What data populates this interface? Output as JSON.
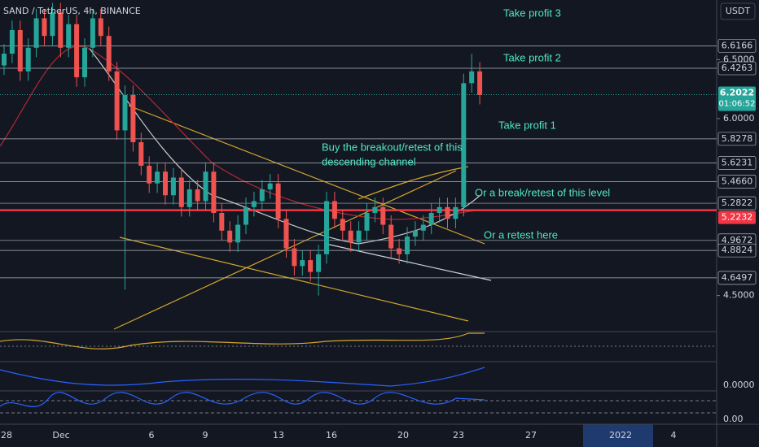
{
  "header": {
    "title": "SAND / TetherUS, 4h, BINANCE",
    "currency": "USDT"
  },
  "annotations": [
    "Take profit 3",
    "Take profit 2",
    "Take profit 1",
    "Buy the breakout/retest of this",
    "descending channel",
    "Or a break/retest of this level",
    "Or a retest here"
  ],
  "chart_data": {
    "type": "candlestick",
    "ylim": [
      4.215,
      7.005
    ],
    "yticks": [
      {
        "value": 6.5,
        "label": "6.5000"
      },
      {
        "value": 6.0,
        "label": "6.0000"
      },
      {
        "value": 4.5,
        "label": "4.5000"
      }
    ],
    "levels": [
      6.6166,
      6.4263,
      5.8278,
      5.6231,
      {
        "value": 5.466,
        "label": "5.4660"
      },
      5.2822,
      4.9672,
      4.8824,
      4.6497
    ],
    "red_level": 5.2232,
    "last_price": 6.2022,
    "countdown": "01:06:52",
    "x_labels": [
      "28",
      "Dec",
      "6",
      "9",
      "13",
      "16",
      "20",
      "23",
      "27",
      "2022",
      "4"
    ],
    "indicator_labels": [
      "0.0000",
      "0.00"
    ],
    "open": [
      6.45,
      6.55,
      6.75,
      6.4,
      6.6,
      6.85,
      6.7,
      6.9,
      6.6,
      6.8,
      6.35,
      6.6,
      6.85,
      6.7,
      6.4,
      5.9,
      6.2,
      5.8,
      5.6,
      5.45,
      5.55,
      5.35,
      5.5,
      5.25,
      5.4,
      5.3,
      5.55,
      5.2,
      5.05,
      4.95,
      5.1,
      5.25,
      5.3,
      5.4,
      5.45,
      5.15,
      4.9,
      4.75,
      4.8,
      4.7,
      4.85,
      5.3,
      5.15,
      5.05,
      4.95,
      5.05,
      5.2,
      5.25,
      5.1,
      4.9,
      4.85,
      5.0,
      5.05,
      5.1,
      5.2,
      5.25,
      5.15,
      5.25,
      6.3,
      6.4
    ],
    "high": [
      6.63,
      6.83,
      6.83,
      6.68,
      6.93,
      6.93,
      6.98,
      6.98,
      6.88,
      6.88,
      6.68,
      6.93,
      6.93,
      6.78,
      6.48,
      6.28,
      6.28,
      5.88,
      5.68,
      5.63,
      5.63,
      5.58,
      5.58,
      5.48,
      5.48,
      5.63,
      5.63,
      5.28,
      5.13,
      5.18,
      5.33,
      5.38,
      5.48,
      5.53,
      5.53,
      5.23,
      4.98,
      4.88,
      4.88,
      4.93,
      5.38,
      5.38,
      5.23,
      5.13,
      5.13,
      5.28,
      5.33,
      5.33,
      5.18,
      4.98,
      5.08,
      5.13,
      5.18,
      5.28,
      5.33,
      5.33,
      5.33,
      6.38,
      6.55,
      6.48
    ],
    "low": [
      6.37,
      6.47,
      6.32,
      6.32,
      6.52,
      6.62,
      6.62,
      6.52,
      6.52,
      6.27,
      6.27,
      6.52,
      6.62,
      6.32,
      5.82,
      4.55,
      5.72,
      5.52,
      5.37,
      5.37,
      5.27,
      5.27,
      5.17,
      5.17,
      5.22,
      5.22,
      5.12,
      4.97,
      4.87,
      4.87,
      5.02,
      5.17,
      5.22,
      5.32,
      5.07,
      4.82,
      4.67,
      4.67,
      4.62,
      4.5,
      4.77,
      5.07,
      4.97,
      4.87,
      4.87,
      4.97,
      5.12,
      5.02,
      4.82,
      4.77,
      4.77,
      4.92,
      4.97,
      5.02,
      5.12,
      5.07,
      5.07,
      5.17,
      6.22,
      6.12
    ],
    "close": [
      6.55,
      6.75,
      6.4,
      6.6,
      6.85,
      6.7,
      6.9,
      6.6,
      6.8,
      6.35,
      6.6,
      6.85,
      6.7,
      6.4,
      5.9,
      6.2,
      5.8,
      5.6,
      5.45,
      5.55,
      5.35,
      5.5,
      5.25,
      5.4,
      5.3,
      5.55,
      5.2,
      5.05,
      4.95,
      5.1,
      5.25,
      5.3,
      5.4,
      5.45,
      5.15,
      4.9,
      4.75,
      4.8,
      4.7,
      4.85,
      5.3,
      5.15,
      5.05,
      4.95,
      5.05,
      5.2,
      5.25,
      5.1,
      4.9,
      4.85,
      5.0,
      5.05,
      5.1,
      5.2,
      5.25,
      5.15,
      5.25,
      6.3,
      6.4,
      6.2
    ]
  }
}
